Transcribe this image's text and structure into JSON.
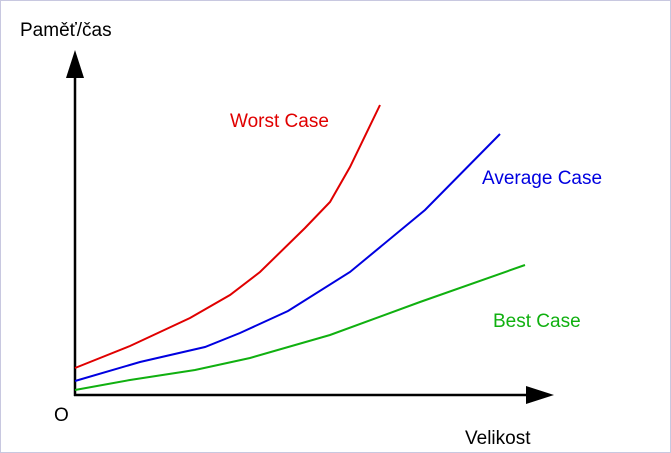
{
  "axes": {
    "y_label": "Paměť/čas",
    "x_label": "Velikost",
    "origin": "O"
  },
  "curves": [
    {
      "label": "Worst Case"
    },
    {
      "label": "Average Case"
    },
    {
      "label": "Best Case"
    }
  ]
}
